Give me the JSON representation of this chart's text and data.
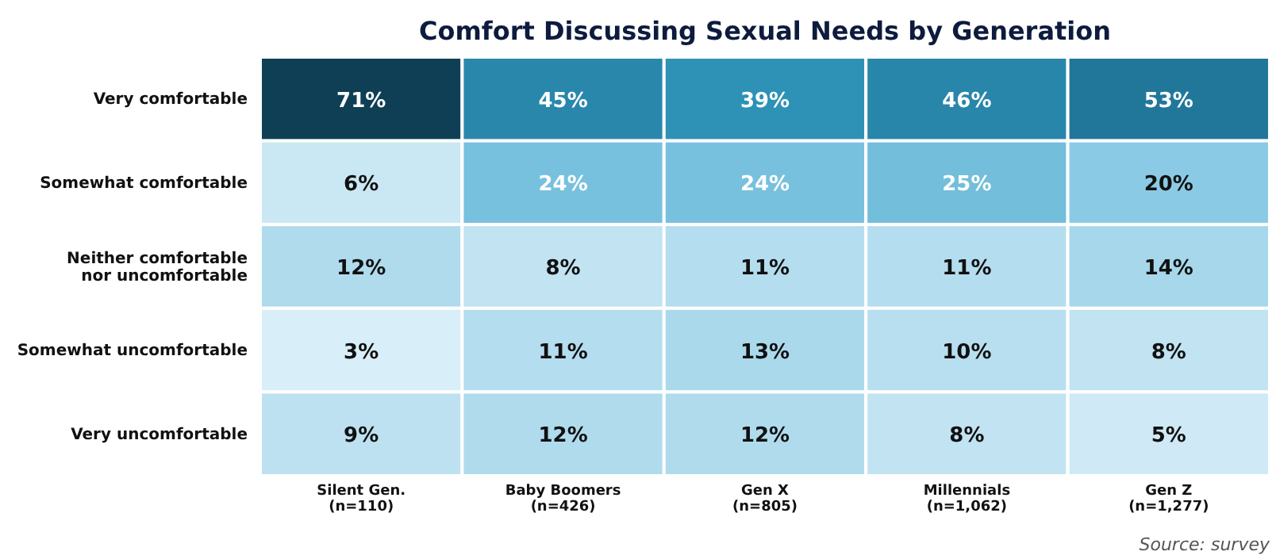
{
  "chart_data": {
    "type": "heatmap",
    "title": "Comfort Discussing Sexual Needs by Generation",
    "categories": [
      "Silent Gen.\n(n=110)",
      "Baby Boomers\n(n=426)",
      "Gen X\n(n=805)",
      "Millennials\n(n=1,062)",
      "Gen Z\n(n=1,277)"
    ],
    "y_categories": [
      "Very comfortable",
      "Somewhat comfortable",
      "Neither comfortable\nnor uncomfortable",
      "Somewhat uncomfortable",
      "Very uncomfortable"
    ],
    "cells": [
      [
        71,
        45,
        39,
        46,
        53
      ],
      [
        6,
        24,
        24,
        25,
        20
      ],
      [
        12,
        8,
        11,
        11,
        14
      ],
      [
        3,
        11,
        13,
        10,
        8
      ],
      [
        9,
        12,
        12,
        8,
        5
      ]
    ],
    "cell_labels": [
      [
        "71%",
        "45%",
        "39%",
        "46%",
        "53%"
      ],
      [
        "6%",
        "24%",
        "24%",
        "25%",
        "20%"
      ],
      [
        "12%",
        "8%",
        "11%",
        "11%",
        "14%"
      ],
      [
        "3%",
        "11%",
        "13%",
        "10%",
        "8%"
      ],
      [
        "9%",
        "12%",
        "12%",
        "8%",
        "5%"
      ]
    ],
    "annotations": [
      "Source: survey"
    ]
  }
}
